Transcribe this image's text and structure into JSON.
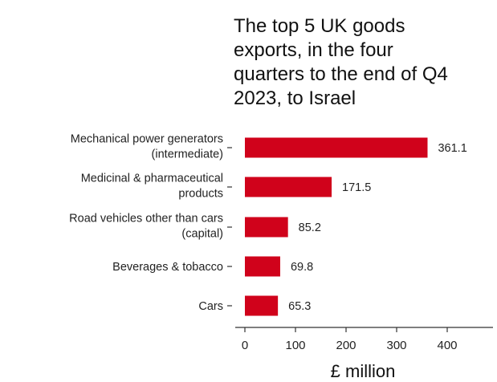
{
  "chart_data": {
    "type": "bar",
    "orientation": "horizontal",
    "title_lines": [
      "The top 5 UK goods",
      "exports, in the four",
      "quarters to the end of Q4",
      "2023, to Israel"
    ],
    "categories": [
      [
        "Mechanical power generators",
        "(intermediate)"
      ],
      [
        "Medicinal & pharmaceutical",
        "products"
      ],
      [
        "Road vehicles other than cars",
        "(capital)"
      ],
      [
        "Beverages & tobacco"
      ],
      [
        "Cars"
      ]
    ],
    "values": [
      361.1,
      171.5,
      85.2,
      69.8,
      65.3
    ],
    "value_labels": [
      "361.1",
      "171.5",
      "85.2",
      "69.8",
      "65.3"
    ],
    "xlabel": "£ million",
    "xticks": [
      0,
      100,
      200,
      300,
      400
    ],
    "xlim": [
      0,
      470
    ],
    "bar_color": "#d0021b",
    "grid": false
  }
}
